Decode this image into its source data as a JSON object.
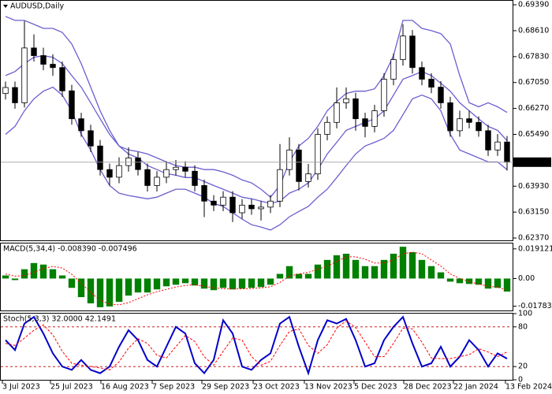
{
  "chart_data": [
    {
      "type": "candlestick",
      "title": "AUDUSD,Daily",
      "open": [
        0.6672,
        0.669,
        0.6644,
        0.6809,
        0.6786,
        0.676,
        0.675,
        0.668,
        0.6596,
        0.656,
        0.6514,
        0.6443,
        0.642,
        0.6455,
        0.6478,
        0.6443,
        0.6395,
        0.642,
        0.6443,
        0.645,
        0.6438,
        0.6395,
        0.6348,
        0.6336,
        0.636,
        0.6313,
        0.6336,
        0.6325,
        0.633,
        0.6348,
        0.6443,
        0.6502,
        0.6407,
        0.643,
        0.6549,
        0.6585,
        0.6644,
        0.6656,
        0.6596,
        0.6573,
        0.662,
        0.6715,
        0.6774,
        0.6845,
        0.675,
        0.6715,
        0.6691,
        0.6644,
        0.656,
        0.6596,
        0.6585,
        0.656,
        0.6502,
        0.6526
      ],
      "high": [
        0.6708,
        0.6708,
        0.689,
        0.685,
        0.681,
        0.679,
        0.6768,
        0.6698,
        0.6614,
        0.6578,
        0.6532,
        0.6461,
        0.648,
        0.651,
        0.6496,
        0.6461,
        0.6438,
        0.6468,
        0.6472,
        0.6468,
        0.6456,
        0.6413,
        0.6366,
        0.6378,
        0.6378,
        0.6354,
        0.6354,
        0.6348,
        0.6366,
        0.652,
        0.654,
        0.652,
        0.646,
        0.6567,
        0.6603,
        0.669,
        0.669,
        0.6674,
        0.6614,
        0.6638,
        0.6733,
        0.6792,
        0.688,
        0.6863,
        0.6768,
        0.6733,
        0.6709,
        0.6662,
        0.662,
        0.662,
        0.6603,
        0.6578,
        0.655,
        0.6544
      ],
      "low": [
        0.6654,
        0.6626,
        0.663,
        0.6768,
        0.6742,
        0.6725,
        0.6662,
        0.6578,
        0.6542,
        0.6496,
        0.6425,
        0.6395,
        0.6402,
        0.6437,
        0.6425,
        0.6377,
        0.6377,
        0.6402,
        0.6425,
        0.642,
        0.6377,
        0.63,
        0.6318,
        0.6318,
        0.6285,
        0.6295,
        0.6307,
        0.629,
        0.6312,
        0.633,
        0.6425,
        0.638,
        0.6389,
        0.6412,
        0.6531,
        0.6567,
        0.6626,
        0.656,
        0.654,
        0.6555,
        0.6602,
        0.6697,
        0.6756,
        0.6732,
        0.6697,
        0.6673,
        0.6626,
        0.6542,
        0.6542,
        0.6567,
        0.6542,
        0.6484,
        0.6484,
        0.644
      ],
      "close": [
        0.669,
        0.6644,
        0.6809,
        0.6786,
        0.676,
        0.675,
        0.668,
        0.6596,
        0.656,
        0.6514,
        0.6443,
        0.642,
        0.6455,
        0.6478,
        0.6443,
        0.6395,
        0.642,
        0.6443,
        0.645,
        0.6438,
        0.6395,
        0.6348,
        0.6336,
        0.636,
        0.6313,
        0.6336,
        0.6325,
        0.633,
        0.6348,
        0.6443,
        0.6502,
        0.6407,
        0.643,
        0.6549,
        0.6585,
        0.6644,
        0.6656,
        0.6596,
        0.6573,
        0.662,
        0.6715,
        0.6774,
        0.6845,
        0.675,
        0.6715,
        0.6691,
        0.6644,
        0.656,
        0.6596,
        0.6585,
        0.656,
        0.6502,
        0.6526,
        0.64653
      ],
      "series": [
        {
          "color": "#6a5fd0",
          "values": [
            0.6904,
            0.6892,
            0.6892,
            0.688,
            0.6868,
            0.6868,
            0.6856,
            0.6821,
            0.6762,
            0.6691,
            0.662,
            0.6561,
            0.6514,
            0.6502,
            0.6497,
            0.649,
            0.6478,
            0.6466,
            0.6455,
            0.645,
            0.645,
            0.6443,
            0.6443,
            0.6436,
            0.6426,
            0.6412,
            0.6403,
            0.6384,
            0.636,
            0.6395,
            0.6466,
            0.6514,
            0.6537,
            0.6573,
            0.662,
            0.6648,
            0.6672,
            0.6679,
            0.6679,
            0.6686,
            0.6726,
            0.6786,
            0.6892,
            0.6892,
            0.6868,
            0.6861,
            0.6852,
            0.6821,
            0.6726,
            0.6644,
            0.6632,
            0.6644,
            0.6632,
            0.6615
          ]
        },
        {
          "color": "#6a5fd0",
          "values": [
            0.6726,
            0.6738,
            0.6762,
            0.6781,
            0.6786,
            0.6781,
            0.6762,
            0.6726,
            0.6691,
            0.6644,
            0.6596,
            0.6549,
            0.6514,
            0.649,
            0.6478,
            0.6455,
            0.6443,
            0.6431,
            0.6426,
            0.6419,
            0.6419,
            0.6407,
            0.6395,
            0.6384,
            0.6372,
            0.636,
            0.6355,
            0.6348,
            0.6341,
            0.6348,
            0.6372,
            0.6384,
            0.6403,
            0.6443,
            0.649,
            0.6525,
            0.6561,
            0.6573,
            0.6585,
            0.6596,
            0.662,
            0.6667,
            0.6715,
            0.6726,
            0.6738,
            0.6726,
            0.6703,
            0.6679,
            0.6644,
            0.662,
            0.6596,
            0.6573,
            0.6561,
            0.653
          ]
        },
        {
          "color": "#6a5fd0",
          "values": [
            0.6549,
            0.6573,
            0.662,
            0.6656,
            0.6679,
            0.6691,
            0.6667,
            0.662,
            0.6549,
            0.6502,
            0.6443,
            0.6395,
            0.6372,
            0.6365,
            0.636,
            0.6355,
            0.636,
            0.6372,
            0.6384,
            0.6384,
            0.6372,
            0.636,
            0.6341,
            0.6332,
            0.6313,
            0.6294,
            0.6277,
            0.627,
            0.6261,
            0.6277,
            0.6301,
            0.6317,
            0.6332,
            0.636,
            0.6384,
            0.6419,
            0.6455,
            0.649,
            0.6514,
            0.6525,
            0.6537,
            0.6561,
            0.6608,
            0.6656,
            0.6667,
            0.6656,
            0.662,
            0.6549,
            0.6502,
            0.649,
            0.6478,
            0.6466,
            0.6466,
            0.6443
          ]
        }
      ],
      "current_price": {
        "value": 0.64653,
        "label": "0.64653"
      },
      "ylim": [
        0.623,
        0.6951
      ],
      "yticks": [
        {
          "value": 0.6939,
          "label": "0.69390"
        },
        {
          "value": 0.6861,
          "label": "0.68610"
        },
        {
          "value": 0.6783,
          "label": "0.67830"
        },
        {
          "value": 0.6705,
          "label": "0.67050"
        },
        {
          "value": 0.6627,
          "label": "0.66270"
        },
        {
          "value": 0.6549,
          "label": "0.65490"
        },
        {
          "value": 0.6393,
          "label": "0.63930"
        },
        {
          "value": 0.6315,
          "label": "0.63150"
        },
        {
          "value": 0.6237,
          "label": "0.62370"
        }
      ],
      "xlim": [
        -0.5,
        53.5
      ],
      "xticks": [
        {
          "value": -0.33,
          "label": "3 Jul 2023"
        },
        {
          "value": 4.75,
          "label": "25 Jul 2023"
        },
        {
          "value": 10.08,
          "label": "16 Aug 2023"
        },
        {
          "value": 15.5,
          "label": "7 Sep 2023"
        },
        {
          "value": 20.75,
          "label": "29 Sep 2023"
        },
        {
          "value": 26.17,
          "label": "23 Oct 2023"
        },
        {
          "value": 31.58,
          "label": "13 Nov 2023"
        },
        {
          "value": 36.83,
          "label": "5 Dec 2023"
        },
        {
          "value": 42.08,
          "label": "28 Dec 2023"
        },
        {
          "value": 47.33,
          "label": "22 Jan 2024"
        },
        {
          "value": 52.83,
          "label": "13 Feb 2024"
        }
      ]
    },
    {
      "type": "macd",
      "title": "MACD(5,34,4) -0.008390 -0.007496",
      "series": [
        {
          "color": "#008000",
          "values": [
            0.002,
            -0.001,
            0.006,
            0.01,
            0.009,
            0.006,
            0.002,
            -0.006,
            -0.012,
            -0.016,
            -0.0185,
            -0.018,
            -0.015,
            -0.011,
            -0.009,
            -0.009,
            -0.007,
            -0.005,
            -0.004,
            -0.003,
            -0.0045,
            -0.0065,
            -0.0075,
            -0.006,
            -0.007,
            -0.0065,
            -0.006,
            -0.0055,
            -0.004,
            0.003,
            0.008,
            0.003,
            0.003,
            0.009,
            0.012,
            0.015,
            0.016,
            0.012,
            0.008,
            0.008,
            0.012,
            0.016,
            0.0205,
            0.017,
            0.012,
            0.008,
            0.004,
            -0.002,
            -0.003,
            -0.0035,
            -0.004,
            -0.0065,
            -0.006,
            -0.00839
          ]
        },
        {
          "color": "#ff0000",
          "values": [
            0.003,
            0.0015,
            0.002,
            0.004,
            0.0065,
            0.0078,
            0.0068,
            0.0028,
            -0.003,
            -0.009,
            -0.014,
            -0.0165,
            -0.017,
            -0.0155,
            -0.013,
            -0.0105,
            -0.0085,
            -0.007,
            -0.0055,
            -0.0045,
            -0.004,
            -0.005,
            -0.006,
            -0.0065,
            -0.0068,
            -0.0066,
            -0.0064,
            -0.006,
            -0.0053,
            -0.0025,
            0.0015,
            0.003,
            0.004,
            0.006,
            0.008,
            0.011,
            0.014,
            0.014,
            0.0125,
            0.01,
            0.01,
            0.012,
            0.016,
            0.017,
            0.016,
            0.012,
            0.008,
            0.003,
            0.0,
            -0.002,
            -0.0035,
            -0.005,
            -0.0055,
            -0.007496
          ]
        }
      ],
      "ylim": [
        -0.0206,
        0.0226
      ],
      "yticks": [
        0.019121,
        {
          "value": 0,
          "label": "0.00"
        },
        -0.017832
      ]
    },
    {
      "type": "stochastic",
      "title": "Stoch(5,3,3) 32.0000 42.1491",
      "series": [
        {
          "color": "#0000c8",
          "values": [
            60,
            45,
            85,
            95,
            70,
            40,
            20,
            15,
            30,
            15,
            10,
            20,
            50,
            75,
            60,
            30,
            20,
            50,
            80,
            70,
            25,
            10,
            30,
            90,
            70,
            20,
            15,
            30,
            40,
            85,
            95,
            50,
            10,
            60,
            90,
            85,
            92,
            60,
            20,
            25,
            60,
            80,
            95,
            55,
            20,
            25,
            50,
            20,
            35,
            60,
            45,
            20,
            40,
            32
          ]
        },
        {
          "color": "#ff0000",
          "values": [
            55,
            52,
            63,
            75,
            83,
            68,
            43,
            25,
            22,
            20,
            18,
            15,
            27,
            48,
            62,
            55,
            37,
            33,
            50,
            67,
            58,
            35,
            22,
            43,
            63,
            60,
            35,
            22,
            28,
            52,
            73,
            77,
            52,
            40,
            53,
            78,
            89,
            79,
            57,
            35,
            35,
            55,
            78,
            77,
            57,
            33,
            32,
            32,
            35,
            38,
            47,
            42,
            35,
            42.1491
          ]
        }
      ],
      "levels": [
        80,
        20
      ],
      "ylim": [
        0,
        100
      ],
      "yticks": [
        100,
        80,
        20,
        0
      ]
    }
  ]
}
